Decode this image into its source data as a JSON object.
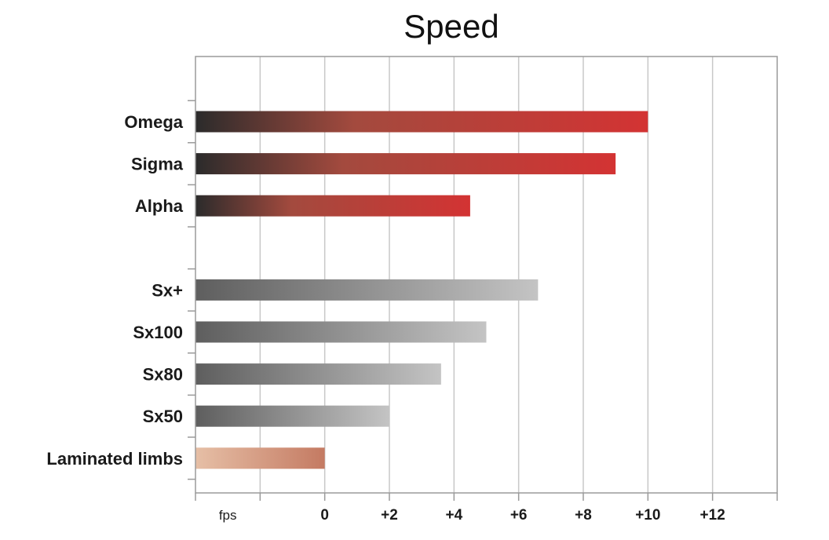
{
  "chart_data": {
    "type": "bar",
    "orientation": "horizontal",
    "title": "Speed",
    "xlabel": "fps",
    "ylabel": "",
    "xlim": [
      -4,
      14
    ],
    "x_ticks": [
      0,
      2,
      4,
      6,
      8,
      10,
      12
    ],
    "x_tick_labels": [
      "0",
      "+2",
      "+4",
      "+6",
      "+8",
      "+10",
      "+12"
    ],
    "grid": true,
    "categories": [
      "Omega",
      "Sigma",
      "Alpha",
      "",
      "Sx+",
      "Sx100",
      "Sx80",
      "Sx50",
      "Laminated limbs"
    ],
    "values": [
      10,
      9,
      4.5,
      null,
      6.6,
      5,
      3.6,
      2,
      0
    ],
    "bar_colors": [
      "red",
      "red",
      "red",
      null,
      "gray",
      "gray",
      "gray",
      "gray",
      "tan"
    ],
    "colors": {
      "red_start": "#2b2b2b",
      "red_mid": "#a34a3e",
      "red_end": "#d33333",
      "gray_start": "#5e5e5e",
      "gray_end": "#c4c4c4",
      "tan_start": "#e6bfa6",
      "tan_end": "#c47a62",
      "grid": "#c8c8c8",
      "axis": "#9a9a9a"
    }
  }
}
